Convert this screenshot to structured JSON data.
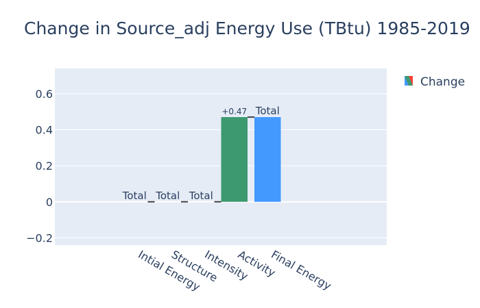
{
  "chart_data": {
    "type": "waterfall",
    "title": "Change in Source_adj Energy Use (TBtu) 1985-2019",
    "categories": [
      "Intial Energy",
      "Structure",
      "Intensity",
      "Activity",
      "Final Energy"
    ],
    "measures": [
      "total",
      "total",
      "total",
      "relative",
      "total"
    ],
    "values": [
      0,
      0,
      0,
      0.47,
      0.47
    ],
    "data_labels": [
      "Total",
      "Total",
      "Total",
      "+0.47",
      "Total"
    ],
    "series": [
      {
        "name": "Change"
      }
    ],
    "xlabel": "",
    "ylabel": "",
    "ylim": [
      -0.24,
      0.74
    ],
    "yticks": [
      -0.2,
      0,
      0.2,
      0.4,
      0.6
    ],
    "ytick_labels": [
      "−0.2",
      "0",
      "0.2",
      "0.4",
      "0.6"
    ],
    "legend_position": "top-right",
    "grid": true,
    "colors": {
      "increasing": "#3d9970",
      "total": "#4499ff",
      "plot_background": "#e5ecf6",
      "grid": "#ffffff",
      "connector": "#444444",
      "text": "#2a3f5f"
    }
  }
}
